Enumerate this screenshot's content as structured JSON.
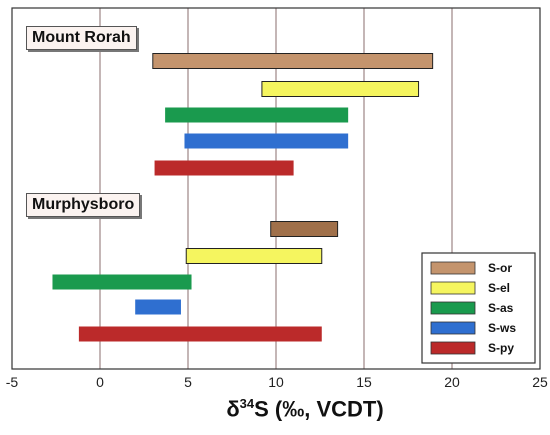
{
  "chart_data": {
    "type": "bar",
    "orientation": "horizontal",
    "xlim": [
      -5,
      25
    ],
    "x_ticks": [
      -5,
      0,
      5,
      10,
      15,
      20,
      25
    ],
    "x_tick_labels": [
      "-5",
      "0",
      "5",
      "10",
      "15",
      "20",
      "25"
    ],
    "xlabel": {
      "prefix": "δ",
      "superscript": "34",
      "suffix": "S (‰, VCDT)"
    },
    "grid": "vertical",
    "sites": [
      {
        "name": "Mount Rorah",
        "bars": [
          {
            "series": "S-or",
            "start": 3.0,
            "end": 18.9
          },
          {
            "series": "S-el",
            "start": 9.2,
            "end": 18.1
          },
          {
            "series": "S-as",
            "start": 3.7,
            "end": 14.1
          },
          {
            "series": "S-ws",
            "start": 4.8,
            "end": 14.1
          },
          {
            "series": "S-py",
            "start": 3.1,
            "end": 11.0
          }
        ]
      },
      {
        "name": "Murphysboro",
        "bars": [
          {
            "series": "S-or",
            "start": 9.7,
            "end": 13.5
          },
          {
            "series": "S-el",
            "start": 4.9,
            "end": 12.6
          },
          {
            "series": "S-as",
            "start": -2.7,
            "end": 5.2
          },
          {
            "series": "S-ws",
            "start": 2.0,
            "end": 4.6
          },
          {
            "series": "S-py",
            "start": -1.2,
            "end": 12.6
          }
        ]
      }
    ],
    "legend": {
      "position": "bottom-right",
      "entries": [
        {
          "name": "S-or",
          "color": "#c4946d"
        },
        {
          "name": "S-el",
          "color": "#f5f55f"
        },
        {
          "name": "S-as",
          "color": "#1a9a4e"
        },
        {
          "name": "S-ws",
          "color": "#2f6fd0"
        },
        {
          "name": "S-py",
          "color": "#bb2a2a"
        }
      ]
    }
  },
  "colors": {
    "S-or_murphysboro": "#a0704a",
    "border": "#333333",
    "grid": "#8a6e6e"
  }
}
